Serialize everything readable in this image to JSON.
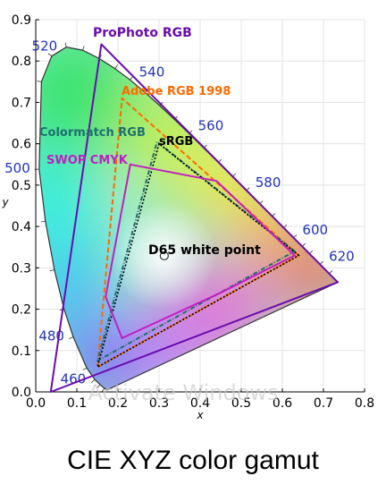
{
  "chart_data": {
    "type": "line",
    "title": "CIE XYZ color gamut",
    "xlabel": "x",
    "ylabel": "y",
    "xlim": [
      0,
      0.8
    ],
    "ylim": [
      0,
      0.9
    ],
    "grid": true,
    "x_ticks": [
      "0.0",
      "0.1",
      "0.2",
      "0.3",
      "0.4",
      "0.5",
      "0.6",
      "0.7",
      "0.8"
    ],
    "y_ticks": [
      "0.0",
      "0.1",
      "0.2",
      "0.3",
      "0.4",
      "0.5",
      "0.6",
      "0.7",
      "0.8",
      "0.9"
    ],
    "spectral_locus": [
      [
        0.1741,
        0.005
      ],
      [
        0.1669,
        0.0086
      ],
      [
        0.1566,
        0.0177
      ],
      [
        0.144,
        0.0297
      ],
      [
        0.1241,
        0.0578
      ],
      [
        0.0913,
        0.1327
      ],
      [
        0.0687,
        0.2007
      ],
      [
        0.0454,
        0.295
      ],
      [
        0.0235,
        0.4127
      ],
      [
        0.0082,
        0.5384
      ],
      [
        0.0139,
        0.7502
      ],
      [
        0.0389,
        0.812
      ],
      [
        0.0743,
        0.8338
      ],
      [
        0.1142,
        0.8262
      ],
      [
        0.1547,
        0.8059
      ],
      [
        0.1929,
        0.7816
      ],
      [
        0.2296,
        0.7543
      ],
      [
        0.2658,
        0.7243
      ],
      [
        0.3016,
        0.6923
      ],
      [
        0.3373,
        0.6589
      ],
      [
        0.3731,
        0.6245
      ],
      [
        0.4087,
        0.5896
      ],
      [
        0.4441,
        0.5547
      ],
      [
        0.4788,
        0.5202
      ],
      [
        0.5125,
        0.4866
      ],
      [
        0.5448,
        0.4544
      ],
      [
        0.5752,
        0.4242
      ],
      [
        0.6029,
        0.3965
      ],
      [
        0.627,
        0.3725
      ],
      [
        0.6482,
        0.3514
      ],
      [
        0.6658,
        0.334
      ],
      [
        0.6915,
        0.3083
      ],
      [
        0.714,
        0.2859
      ],
      [
        0.7347,
        0.2653
      ]
    ],
    "wavelength_labels": [
      {
        "label": "460",
        "x": 0.144,
        "y": 0.0297,
        "pos": "left"
      },
      {
        "label": "480",
        "x": 0.0913,
        "y": 0.1327,
        "pos": "left"
      },
      {
        "label": "500",
        "x": 0.0082,
        "y": 0.5384,
        "pos": "left"
      },
      {
        "label": "520",
        "x": 0.0743,
        "y": 0.8338,
        "pos": "left"
      },
      {
        "label": "540",
        "x": 0.2296,
        "y": 0.7543,
        "pos": "right"
      },
      {
        "label": "560",
        "x": 0.3731,
        "y": 0.6245,
        "pos": "right"
      },
      {
        "label": "580",
        "x": 0.5125,
        "y": 0.4866,
        "pos": "right"
      },
      {
        "label": "600",
        "x": 0.627,
        "y": 0.3725,
        "pos": "right"
      },
      {
        "label": "620",
        "x": 0.6915,
        "y": 0.3083,
        "pos": "right"
      }
    ],
    "series": [
      {
        "name": "ProPhoto RGB",
        "color": "#6a0dad",
        "style": "solid",
        "points": [
          [
            0.7347,
            0.2653
          ],
          [
            0.1596,
            0.8404
          ],
          [
            0.0366,
            0.0001
          ]
        ]
      },
      {
        "name": "Adobe RGB 1998",
        "color": "#ff6a00",
        "style": "dashed",
        "points": [
          [
            0.64,
            0.33
          ],
          [
            0.21,
            0.71
          ],
          [
            0.15,
            0.06
          ]
        ]
      },
      {
        "name": "Colormatch RGB",
        "color": "#1f6f6f",
        "style": "dashed",
        "points": [
          [
            0.63,
            0.34
          ],
          [
            0.295,
            0.605
          ],
          [
            0.15,
            0.075
          ]
        ]
      },
      {
        "name": "sRGB",
        "color": "#000000",
        "style": "dotted",
        "points": [
          [
            0.64,
            0.33
          ],
          [
            0.3,
            0.6
          ],
          [
            0.15,
            0.06
          ]
        ]
      },
      {
        "name": "SWOP CMYK",
        "color": "#c21ec2",
        "style": "solid",
        "points": [
          [
            0.23,
            0.55
          ],
          [
            0.44,
            0.51
          ],
          [
            0.63,
            0.33
          ],
          [
            0.45,
            0.24
          ],
          [
            0.21,
            0.13
          ],
          [
            0.17,
            0.23
          ]
        ]
      }
    ],
    "annotations": [
      {
        "text": "ProPhoto RGB",
        "color": "#6a0dad"
      },
      {
        "text": "Adobe RGB 1998",
        "color": "#ff6a00"
      },
      {
        "text": "Colormatch RGB",
        "color": "#1f6f6f"
      },
      {
        "text": "sRGB",
        "color": "#000000"
      },
      {
        "text": "SWOP CMYK",
        "color": "#c21ec2"
      },
      {
        "text": "D65 white point",
        "color": "#000000"
      }
    ],
    "white_point": {
      "name": "D65 white point",
      "x": 0.3127,
      "y": 0.329
    },
    "watermark": "Activate Windows"
  }
}
